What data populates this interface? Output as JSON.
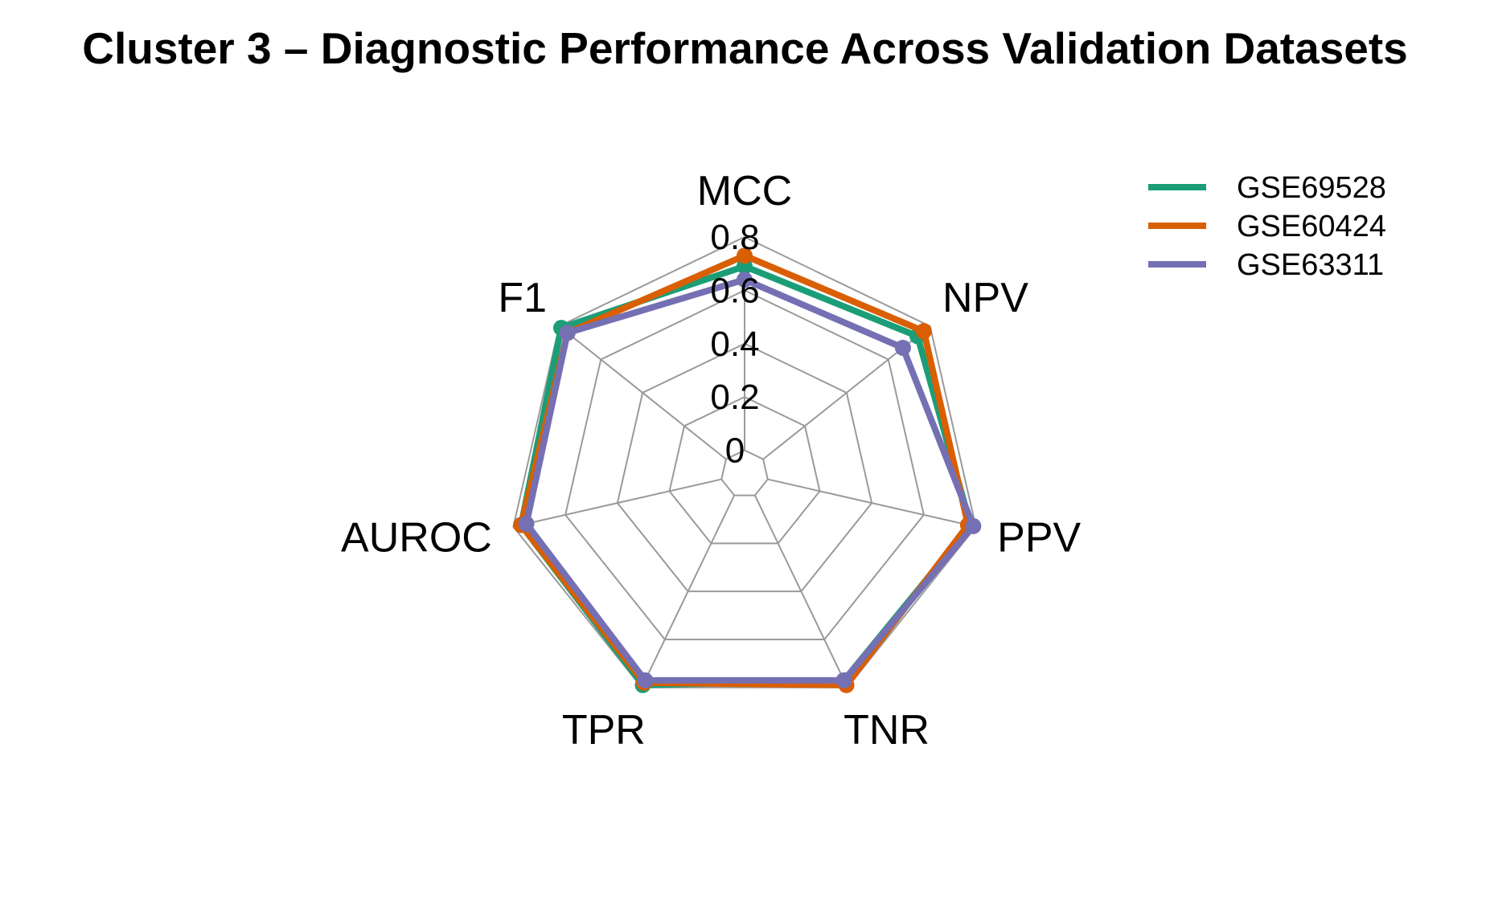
{
  "chart_data": {
    "type": "radar",
    "title": "Cluster 3 – Diagnostic Performance Across Validation Datasets",
    "axes": [
      "MCC",
      "NPV",
      "PPV",
      "TNR",
      "TPR",
      "AUROC",
      "F1"
    ],
    "radial_ticks": [
      "0",
      "0.2",
      "0.4",
      "0.6",
      "0.8"
    ],
    "radial_range": [
      0,
      0.8
    ],
    "series": [
      {
        "name": "GSE69528",
        "color": "#1B9E77",
        "values": [
          0.69,
          0.74,
          0.78,
          0.77,
          0.79,
          0.77,
          0.79
        ]
      },
      {
        "name": "GSE60424",
        "color": "#D95F02",
        "values": [
          0.73,
          0.77,
          0.77,
          0.79,
          0.78,
          0.77,
          0.76
        ]
      },
      {
        "name": "GSE63311",
        "color": "#7570B3",
        "values": [
          0.64,
          0.67,
          0.79,
          0.77,
          0.77,
          0.75,
          0.76
        ]
      }
    ],
    "legend_position": "top-right",
    "grid": true
  }
}
